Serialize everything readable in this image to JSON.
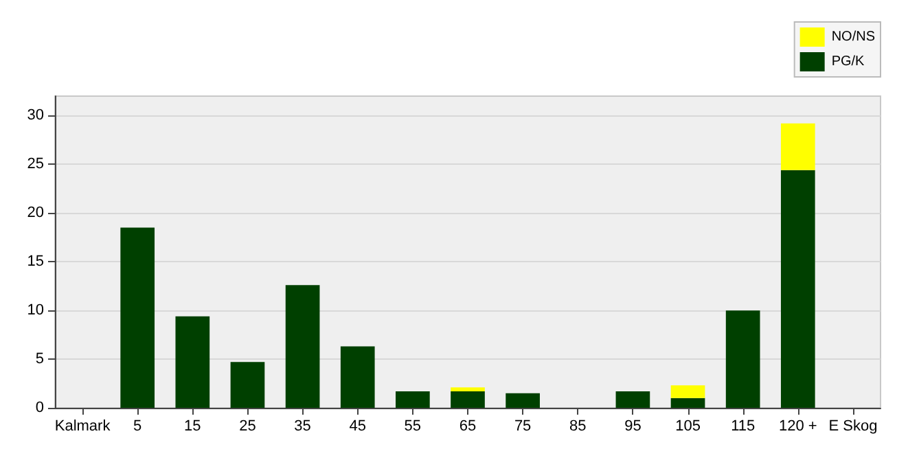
{
  "chart_data": {
    "type": "bar",
    "stacked": true,
    "categories": [
      "Kalmark",
      "5",
      "15",
      "25",
      "35",
      "45",
      "55",
      "65",
      "75",
      "85",
      "95",
      "105",
      "115",
      "120 +",
      "E Skog"
    ],
    "series": [
      {
        "name": "PG/K",
        "color": "#004000",
        "values": [
          0,
          18.5,
          9.4,
          4.7,
          12.6,
          6.3,
          1.7,
          1.7,
          1.5,
          0,
          1.7,
          1,
          10,
          24.4,
          0
        ]
      },
      {
        "name": "NO/NS",
        "color": "#ffff00",
        "values": [
          0,
          0,
          0,
          0,
          0,
          0,
          0,
          0.4,
          0,
          0,
          0,
          1.3,
          0,
          4.8,
          0
        ]
      }
    ],
    "ylim": [
      0,
      32
    ],
    "yticks": [
      0,
      5,
      10,
      15,
      20,
      25,
      30
    ],
    "grid": "y",
    "legend": "top right"
  }
}
